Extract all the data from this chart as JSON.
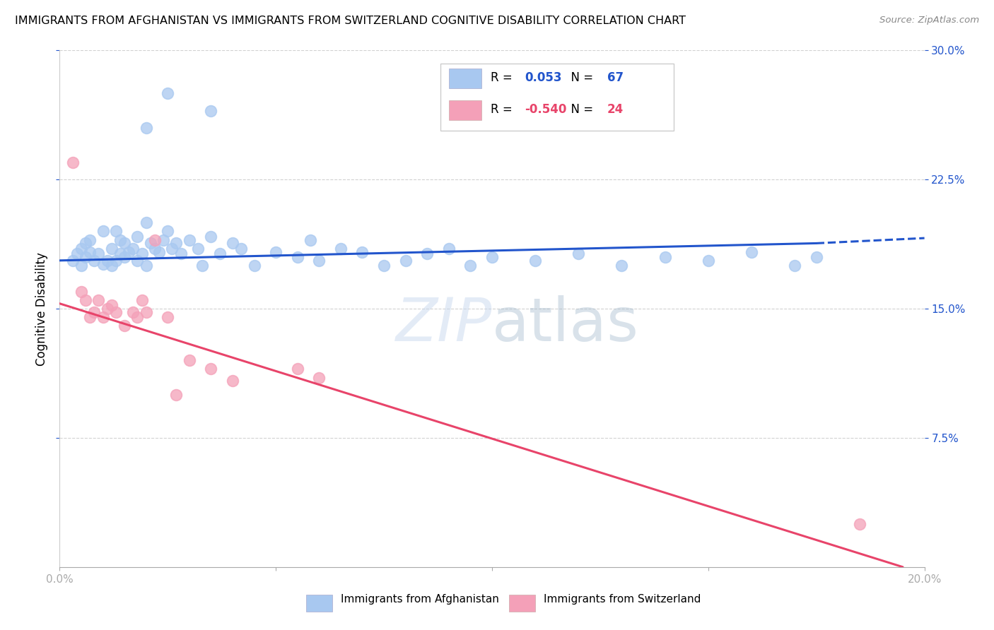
{
  "title": "IMMIGRANTS FROM AFGHANISTAN VS IMMIGRANTS FROM SWITZERLAND COGNITIVE DISABILITY CORRELATION CHART",
  "source": "Source: ZipAtlas.com",
  "ylabel": "Cognitive Disability",
  "legend_label_blue": "Immigrants from Afghanistan",
  "legend_label_pink": "Immigrants from Switzerland",
  "r_blue": "0.053",
  "n_blue": "67",
  "r_pink": "-0.540",
  "n_pink": "24",
  "xlim": [
    0.0,
    0.2
  ],
  "ylim": [
    0.0,
    0.3
  ],
  "xticks": [
    0.0,
    0.05,
    0.1,
    0.15,
    0.2
  ],
  "yticks": [
    0.075,
    0.15,
    0.225,
    0.3
  ],
  "xticklabels_show": [
    "0.0%",
    "20.0%"
  ],
  "xticklabels_pos": [
    0.0,
    0.2
  ],
  "yticklabels": [
    "7.5%",
    "15.0%",
    "22.5%",
    "30.0%"
  ],
  "blue_color": "#a8c8f0",
  "pink_color": "#f4a0b8",
  "blue_line_color": "#2255cc",
  "pink_line_color": "#e8446a",
  "blue_r_color": "#2255cc",
  "pink_r_color": "#e8446a",
  "watermark_color": "#c8d8ee",
  "blue_scatter_x": [
    0.003,
    0.004,
    0.005,
    0.005,
    0.006,
    0.006,
    0.007,
    0.007,
    0.008,
    0.009,
    0.01,
    0.01,
    0.011,
    0.012,
    0.012,
    0.013,
    0.013,
    0.014,
    0.014,
    0.015,
    0.015,
    0.016,
    0.017,
    0.018,
    0.018,
    0.019,
    0.02,
    0.02,
    0.021,
    0.022,
    0.023,
    0.024,
    0.025,
    0.026,
    0.027,
    0.028,
    0.03,
    0.032,
    0.033,
    0.035,
    0.037,
    0.04,
    0.042,
    0.045,
    0.05,
    0.055,
    0.058,
    0.06,
    0.065,
    0.07,
    0.075,
    0.08,
    0.085,
    0.09,
    0.095,
    0.1,
    0.11,
    0.12,
    0.13,
    0.14,
    0.15,
    0.16,
    0.17,
    0.175,
    0.02,
    0.025,
    0.035
  ],
  "blue_scatter_y": [
    0.178,
    0.182,
    0.175,
    0.185,
    0.18,
    0.188,
    0.183,
    0.19,
    0.178,
    0.182,
    0.176,
    0.195,
    0.178,
    0.175,
    0.185,
    0.178,
    0.195,
    0.182,
    0.19,
    0.18,
    0.188,
    0.183,
    0.185,
    0.178,
    0.192,
    0.182,
    0.2,
    0.175,
    0.188,
    0.185,
    0.183,
    0.19,
    0.195,
    0.185,
    0.188,
    0.182,
    0.19,
    0.185,
    0.175,
    0.192,
    0.182,
    0.188,
    0.185,
    0.175,
    0.183,
    0.18,
    0.19,
    0.178,
    0.185,
    0.183,
    0.175,
    0.178,
    0.182,
    0.185,
    0.175,
    0.18,
    0.178,
    0.182,
    0.175,
    0.18,
    0.178,
    0.183,
    0.175,
    0.18,
    0.255,
    0.275,
    0.265
  ],
  "pink_scatter_x": [
    0.003,
    0.005,
    0.006,
    0.007,
    0.008,
    0.009,
    0.01,
    0.011,
    0.012,
    0.013,
    0.015,
    0.017,
    0.018,
    0.019,
    0.02,
    0.022,
    0.025,
    0.027,
    0.03,
    0.035,
    0.04,
    0.055,
    0.06,
    0.185
  ],
  "pink_scatter_y": [
    0.235,
    0.16,
    0.155,
    0.145,
    0.148,
    0.155,
    0.145,
    0.15,
    0.152,
    0.148,
    0.14,
    0.148,
    0.145,
    0.155,
    0.148,
    0.19,
    0.145,
    0.1,
    0.12,
    0.115,
    0.108,
    0.115,
    0.11,
    0.025
  ],
  "blue_trend_x0": 0.0,
  "blue_trend_x1": 0.175,
  "blue_trend_x2": 0.2,
  "blue_trend_y0": 0.178,
  "blue_trend_y1": 0.188,
  "blue_trend_y2": 0.191,
  "pink_trend_x0": 0.0,
  "pink_trend_x1": 0.195,
  "pink_trend_y0": 0.153,
  "pink_trend_y1": 0.0,
  "grid_color": "#cccccc",
  "background_color": "#ffffff"
}
